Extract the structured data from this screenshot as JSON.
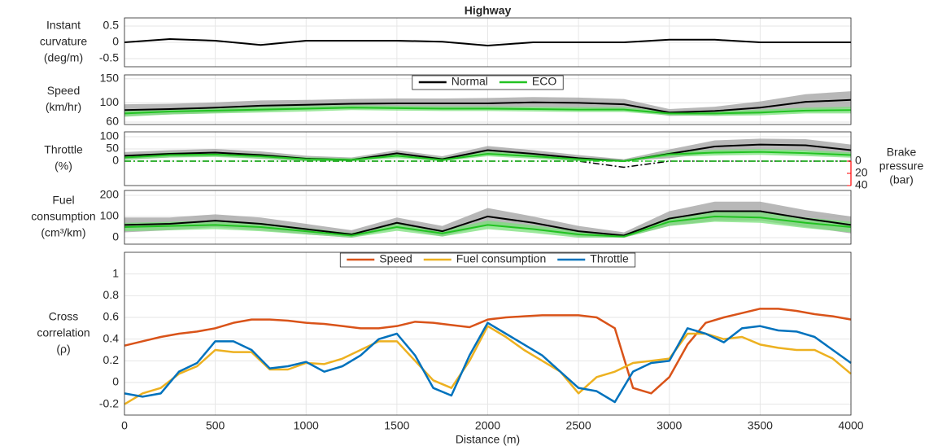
{
  "chart_data": [
    {
      "type": "line",
      "title": "Highway",
      "ylabel": [
        "Instant",
        "curvature",
        "(deg/m)"
      ],
      "x": [
        0,
        250,
        500,
        750,
        1000,
        1250,
        1500,
        1750,
        2000,
        2250,
        2500,
        2750,
        3000,
        3250,
        3500,
        3750,
        4000
      ],
      "series": [
        {
          "color": "#000000",
          "values": [
            0,
            0.1,
            0.05,
            -0.08,
            0.05,
            0.05,
            0.05,
            0.02,
            -0.1,
            0,
            0,
            0,
            0.08,
            0.08,
            0,
            0,
            0
          ]
        }
      ],
      "xlim": [
        0,
        4000
      ],
      "xticks": [
        0,
        500,
        1000,
        1500,
        2000,
        2500,
        3000,
        3500,
        4000
      ],
      "ylim": [
        -0.75,
        0.75
      ],
      "yticks": [
        -0.5,
        0,
        0.5
      ],
      "grid": true
    },
    {
      "type": "line",
      "ylabel": [
        "Speed",
        "(km/hr)"
      ],
      "legend": "top-center",
      "x": [
        0,
        250,
        500,
        750,
        1000,
        1250,
        1500,
        1750,
        2000,
        2250,
        2500,
        2750,
        3000,
        3250,
        3500,
        3750,
        4000
      ],
      "series": [
        {
          "name": "Normal",
          "color": "#000000",
          "band_color": "#a0a0a0",
          "values": [
            85,
            87,
            90,
            94,
            96,
            98,
            99,
            99,
            99,
            101,
            100,
            97,
            80,
            83,
            90,
            102,
            106
          ],
          "upper": [
            97,
            98,
            101,
            105,
            106,
            108,
            109,
            109,
            110,
            112,
            111,
            108,
            87,
            92,
            103,
            118,
            124
          ],
          "lower": [
            73,
            76,
            79,
            83,
            86,
            88,
            89,
            89,
            88,
            90,
            89,
            86,
            73,
            74,
            77,
            86,
            88
          ]
        },
        {
          "name": "ECO",
          "color": "#22c322",
          "band_color": "#7be07b",
          "values": [
            78,
            82,
            84,
            86,
            88,
            90,
            89,
            88,
            88,
            87,
            86,
            86,
            78,
            78,
            80,
            84,
            85
          ],
          "upper": [
            85,
            88,
            90,
            92,
            94,
            95,
            94,
            93,
            93,
            92,
            91,
            91,
            82,
            83,
            86,
            90,
            92
          ],
          "lower": [
            71,
            76,
            78,
            80,
            82,
            85,
            84,
            83,
            83,
            82,
            81,
            81,
            74,
            73,
            74,
            78,
            78
          ]
        }
      ],
      "xlim": [
        0,
        4000
      ],
      "xticks": [
        0,
        500,
        1000,
        1500,
        2000,
        2500,
        3000,
        3500,
        4000
      ],
      "ylim": [
        55,
        158
      ],
      "yticks": [
        60,
        100,
        150
      ],
      "grid": true
    },
    {
      "type": "line",
      "ylabel": [
        "Throttle",
        "(%)"
      ],
      "y2label": [
        "Brake",
        "pressure",
        "(bar)"
      ],
      "y2_color": "#ff0000",
      "x": [
        0,
        250,
        500,
        750,
        1000,
        1250,
        1500,
        1750,
        2000,
        2250,
        2500,
        2750,
        3000,
        3250,
        3500,
        3750,
        4000
      ],
      "series": [
        {
          "color": "#000000",
          "band_color": "#a0a0a0",
          "values": [
            22,
            30,
            35,
            25,
            10,
            5,
            32,
            8,
            45,
            30,
            12,
            0,
            30,
            60,
            68,
            65,
            45
          ],
          "upper": [
            37,
            45,
            50,
            40,
            22,
            15,
            45,
            20,
            62,
            45,
            25,
            8,
            48,
            85,
            92,
            90,
            68
          ],
          "lower": [
            7,
            15,
            20,
            10,
            0,
            0,
            19,
            0,
            28,
            15,
            0,
            0,
            12,
            35,
            44,
            40,
            22
          ]
        },
        {
          "color": "#22c322",
          "band_color": "#7be07b",
          "values": [
            15,
            25,
            27,
            20,
            8,
            5,
            22,
            5,
            30,
            20,
            8,
            0,
            28,
            35,
            38,
            33,
            25
          ],
          "upper": [
            25,
            35,
            37,
            30,
            16,
            12,
            32,
            14,
            40,
            30,
            16,
            5,
            38,
            47,
            50,
            45,
            36
          ],
          "lower": [
            5,
            15,
            17,
            10,
            0,
            0,
            12,
            0,
            20,
            10,
            0,
            0,
            18,
            23,
            26,
            21,
            14
          ]
        },
        {
          "color": "#000000",
          "axis": "y2",
          "dash": true,
          "values": [
            0,
            0,
            0,
            0,
            0,
            0,
            0,
            0,
            0,
            0,
            0,
            10,
            0,
            0,
            0,
            0,
            0
          ]
        },
        {
          "color": "#22c322",
          "axis": "y2",
          "dash": true,
          "values": [
            0,
            0,
            0,
            0,
            0,
            0,
            0,
            0,
            0,
            0,
            0,
            0,
            0,
            0,
            0,
            0,
            0
          ]
        }
      ],
      "xlim": [
        0,
        4000
      ],
      "xticks": [
        0,
        500,
        1000,
        1500,
        2000,
        2500,
        3000,
        3500,
        4000
      ],
      "ylim": [
        -100,
        120
      ],
      "yticks": [
        0,
        50,
        100
      ],
      "y2lim": [
        40,
        -48
      ],
      "y2ticks": [
        0,
        20,
        40
      ],
      "grid": true
    },
    {
      "type": "line",
      "ylabel": [
        "Fuel",
        "consumption",
        "(cm³/km)"
      ],
      "x": [
        0,
        250,
        500,
        750,
        1000,
        1250,
        1500,
        1750,
        2000,
        2250,
        2500,
        2750,
        3000,
        3250,
        3500,
        3750,
        4000
      ],
      "series": [
        {
          "color": "#000000",
          "band_color": "#a0a0a0",
          "values": [
            60,
            65,
            80,
            65,
            40,
            15,
            70,
            30,
            100,
            70,
            30,
            10,
            90,
            125,
            125,
            90,
            60
          ],
          "upper": [
            95,
            95,
            110,
            95,
            65,
            35,
            95,
            55,
            140,
            100,
            55,
            25,
            125,
            170,
            170,
            130,
            100
          ],
          "lower": [
            25,
            35,
            50,
            35,
            15,
            0,
            45,
            5,
            60,
            40,
            5,
            0,
            55,
            80,
            80,
            50,
            20
          ]
        },
        {
          "color": "#22c322",
          "band_color": "#7be07b",
          "values": [
            50,
            55,
            60,
            50,
            30,
            10,
            50,
            20,
            60,
            40,
            15,
            5,
            75,
            100,
            95,
            70,
            50
          ],
          "upper": [
            70,
            75,
            80,
            70,
            45,
            22,
            68,
            35,
            80,
            58,
            30,
            15,
            95,
            125,
            120,
            95,
            75
          ],
          "lower": [
            30,
            35,
            40,
            30,
            15,
            0,
            32,
            5,
            40,
            22,
            0,
            0,
            55,
            75,
            70,
            45,
            25
          ]
        }
      ],
      "xlim": [
        0,
        4000
      ],
      "xticks": [
        0,
        500,
        1000,
        1500,
        2000,
        2500,
        3000,
        3500,
        4000
      ],
      "ylim": [
        -31,
        223
      ],
      "yticks": [
        0,
        100,
        200
      ],
      "grid": true
    },
    {
      "type": "line",
      "ylabel": [
        "Cross",
        "correlation",
        "(ρ)"
      ],
      "xlabel": "Distance (m)",
      "legend": "top-center",
      "x": [
        0,
        100,
        200,
        300,
        400,
        500,
        600,
        700,
        800,
        900,
        1000,
        1100,
        1200,
        1300,
        1400,
        1500,
        1600,
        1700,
        1800,
        1900,
        2000,
        2100,
        2200,
        2300,
        2400,
        2500,
        2600,
        2700,
        2800,
        2900,
        3000,
        3100,
        3200,
        3300,
        3400,
        3500,
        3600,
        3700,
        3800,
        3900,
        4000
      ],
      "series": [
        {
          "name": "Speed",
          "color": "#d95319",
          "values": [
            0.34,
            0.38,
            0.42,
            0.45,
            0.47,
            0.5,
            0.55,
            0.58,
            0.58,
            0.57,
            0.55,
            0.54,
            0.52,
            0.5,
            0.5,
            0.52,
            0.56,
            0.55,
            0.53,
            0.51,
            0.58,
            0.6,
            0.61,
            0.62,
            0.62,
            0.62,
            0.6,
            0.5,
            -0.05,
            -0.1,
            0.05,
            0.35,
            0.55,
            0.6,
            0.64,
            0.68,
            0.68,
            0.66,
            0.63,
            0.61,
            0.58
          ]
        },
        {
          "name": "Fuel consumption",
          "color": "#edb120",
          "values": [
            -0.2,
            -0.1,
            -0.05,
            0.08,
            0.15,
            0.3,
            0.28,
            0.28,
            0.12,
            0.12,
            0.18,
            0.17,
            0.22,
            0.3,
            0.38,
            0.38,
            0.2,
            0.02,
            -0.05,
            0.2,
            0.52,
            0.42,
            0.3,
            0.2,
            0.1,
            -0.1,
            0.05,
            0.1,
            0.18,
            0.2,
            0.22,
            0.45,
            0.45,
            0.4,
            0.42,
            0.35,
            0.32,
            0.3,
            0.3,
            0.22,
            0.08
          ]
        },
        {
          "name": "Throttle",
          "color": "#0072bd",
          "values": [
            -0.1,
            -0.13,
            -0.1,
            0.1,
            0.18,
            0.38,
            0.38,
            0.3,
            0.13,
            0.15,
            0.19,
            0.1,
            0.15,
            0.25,
            0.4,
            0.45,
            0.25,
            -0.05,
            -0.12,
            0.25,
            0.55,
            0.45,
            0.35,
            0.25,
            0.1,
            -0.05,
            -0.08,
            -0.18,
            0.1,
            0.18,
            0.2,
            0.5,
            0.45,
            0.37,
            0.5,
            0.52,
            0.48,
            0.47,
            0.42,
            0.3,
            0.18
          ]
        }
      ],
      "xlim": [
        0,
        4000
      ],
      "xticks": [
        0,
        500,
        1000,
        1500,
        2000,
        2500,
        3000,
        3500,
        4000
      ],
      "ylim": [
        -0.3,
        1.2
      ],
      "yticks": [
        -0.2,
        0,
        0.2,
        0.4,
        0.6,
        0.8,
        1
      ],
      "grid": true
    }
  ]
}
